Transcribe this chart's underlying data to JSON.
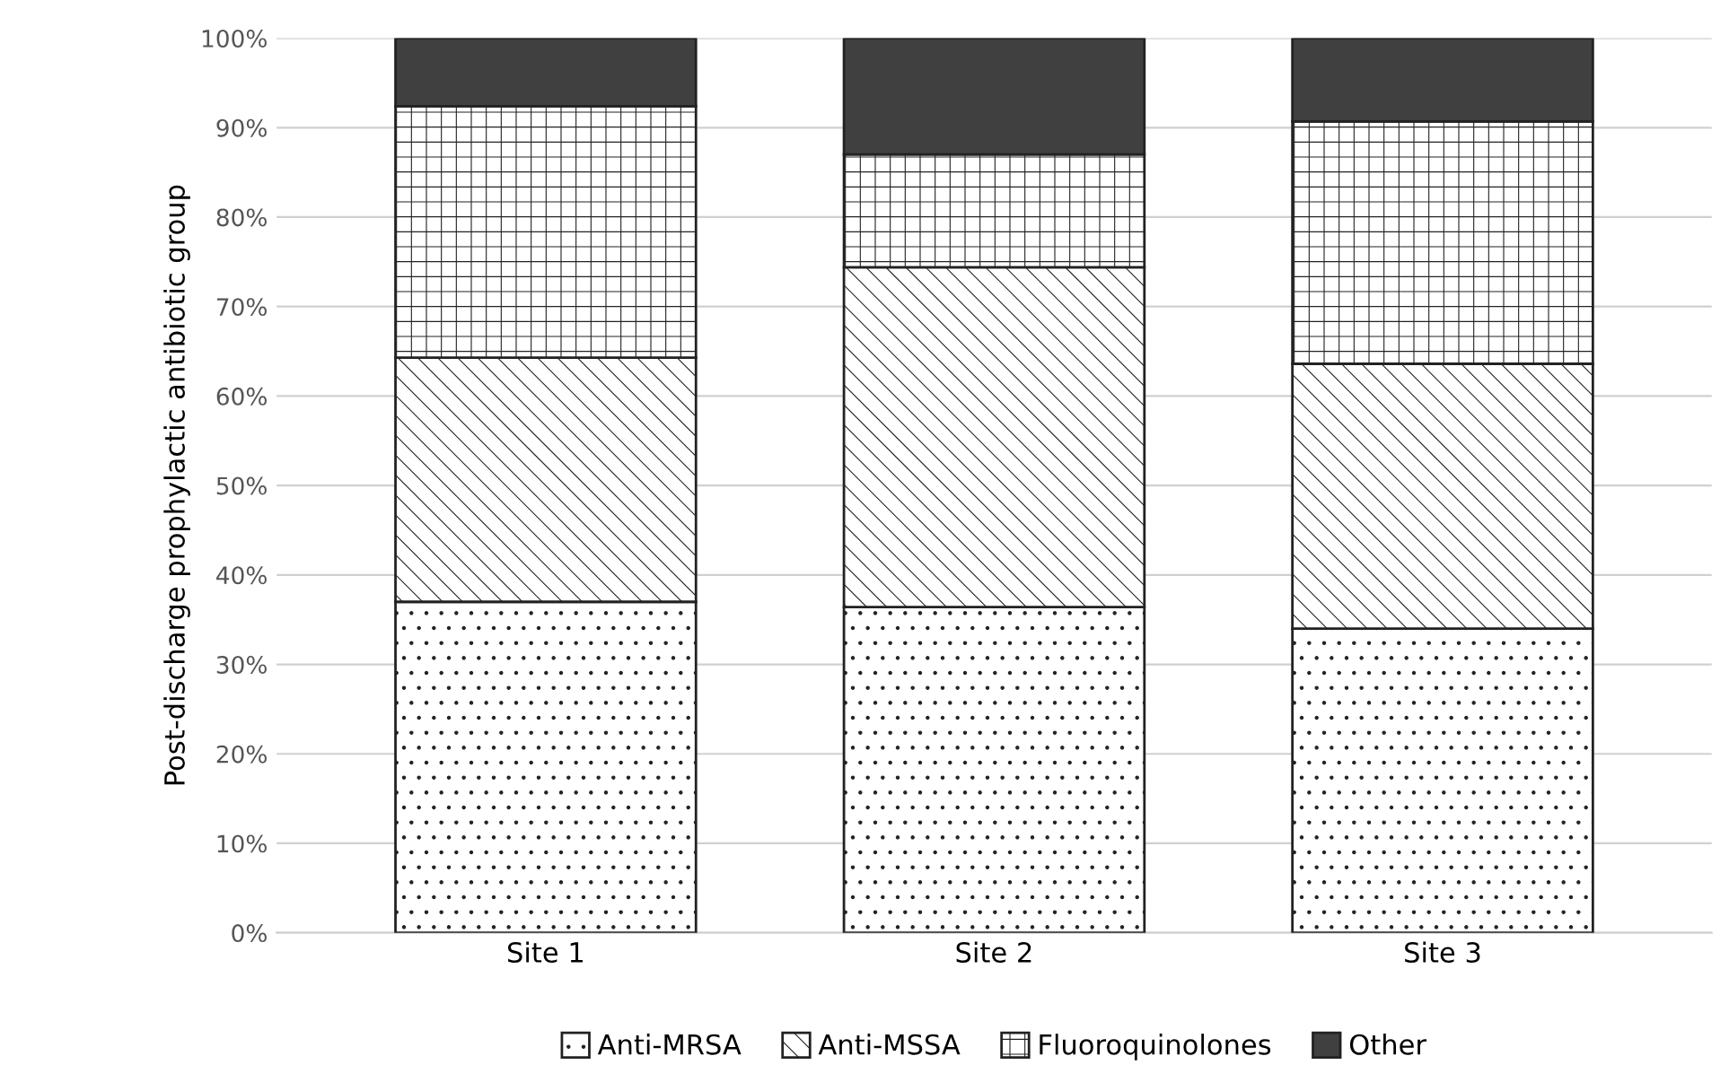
{
  "chart_data": {
    "type": "bar",
    "stacked": true,
    "ylabel": "Post-discharge prophylactic antibiotic group",
    "categories": [
      "Site 1",
      "Site 2",
      "Site 3"
    ],
    "series": [
      {
        "name": "Anti-MRSA",
        "color": "#ffffff",
        "values": [
          37,
          36.4,
          34
        ]
      },
      {
        "name": "Anti-MSSA",
        "color": "#ffffff",
        "values": [
          27.3,
          38,
          29.6
        ]
      },
      {
        "name": "Fluoroquinolones",
        "color": "#ffffff",
        "values": [
          28.1,
          12.6,
          27.1
        ]
      },
      {
        "name": "Other",
        "color": "#404040",
        "values": [
          7.6,
          13,
          9.3
        ]
      }
    ],
    "ylim": [
      0,
      100
    ],
    "yticks": [
      {
        "value": 0,
        "label": "0%"
      },
      {
        "value": 10,
        "label": "10%"
      },
      {
        "value": 20,
        "label": "20%"
      },
      {
        "value": 30,
        "label": "30%"
      },
      {
        "value": 40,
        "label": "40%"
      },
      {
        "value": 50,
        "label": "50%"
      },
      {
        "value": 60,
        "label": "60%"
      },
      {
        "value": 70,
        "label": "70%"
      },
      {
        "value": 80,
        "label": "80%"
      },
      {
        "value": 90,
        "label": "90%"
      },
      {
        "value": 100,
        "label": "100%"
      }
    ],
    "grid": "y",
    "legend": "bottom"
  }
}
